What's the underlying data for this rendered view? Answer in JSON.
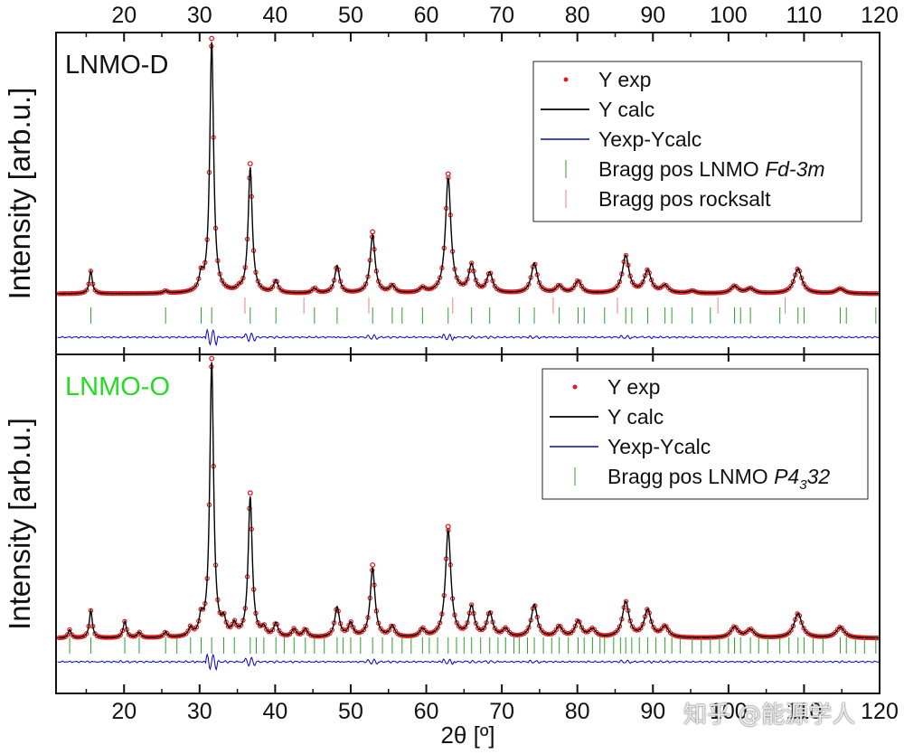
{
  "figure": {
    "watermark": "知乎 @能源学人"
  },
  "chart_data": [
    {
      "type": "scatter",
      "panel_label": "LNMO-D",
      "panel_label_color": "#111111",
      "xlabel": "2θ [º]",
      "ylabel": "Intensity [arb.u.]",
      "xlim": [
        11,
        120
      ],
      "x_ticks": [
        20,
        30,
        40,
        50,
        60,
        70,
        80,
        90,
        100,
        110,
        120
      ],
      "y_ticks_shown": false,
      "legend_position": "top-right",
      "baseline": 0.05,
      "peaks": [
        {
          "x": 15.6,
          "h": 0.09
        },
        {
          "x": 25.5,
          "h": 0.01
        },
        {
          "x": 30.2,
          "h": 0.06
        },
        {
          "x": 31.6,
          "h": 1.0
        },
        {
          "x": 35.2,
          "h": 0.01
        },
        {
          "x": 36.7,
          "h": 0.5
        },
        {
          "x": 40.1,
          "h": 0.05
        },
        {
          "x": 45.2,
          "h": 0.02
        },
        {
          "x": 48.2,
          "h": 0.11
        },
        {
          "x": 52.9,
          "h": 0.23
        },
        {
          "x": 55.5,
          "h": 0.03
        },
        {
          "x": 59.5,
          "h": 0.02
        },
        {
          "x": 62.9,
          "h": 0.46
        },
        {
          "x": 66.0,
          "h": 0.11
        },
        {
          "x": 68.4,
          "h": 0.08
        },
        {
          "x": 74.3,
          "h": 0.12
        },
        {
          "x": 77.6,
          "h": 0.03
        },
        {
          "x": 80.1,
          "h": 0.05
        },
        {
          "x": 86.4,
          "h": 0.15
        },
        {
          "x": 89.3,
          "h": 0.09
        },
        {
          "x": 91.6,
          "h": 0.03
        },
        {
          "x": 95.2,
          "h": 0.01
        },
        {
          "x": 100.8,
          "h": 0.03
        },
        {
          "x": 102.9,
          "h": 0.02
        },
        {
          "x": 109.2,
          "h": 0.1
        },
        {
          "x": 114.8,
          "h": 0.02
        }
      ],
      "bragg_positions": [
        {
          "name": "Bragg pos LNMO",
          "color": "#2ca02c",
          "x": [
            15.6,
            25.5,
            30.2,
            31.6,
            36.7,
            40.1,
            45.2,
            48.2,
            52.9,
            55.5,
            56.8,
            59.5,
            62.9,
            66.0,
            68.4,
            72.3,
            74.3,
            77.6,
            80.1,
            80.9,
            83.6,
            86.4,
            87.2,
            89.3,
            91.6,
            92.5,
            95.2,
            97.6,
            100.8,
            101.6,
            102.9,
            106.8,
            109.2,
            110.0,
            114.8,
            115.6,
            119.5
          ]
        },
        {
          "name": "Bragg pos rocksalt",
          "color": "#f08080",
          "x": [
            36.0,
            43.8,
            52.4,
            63.5,
            76.8,
            85.3,
            98.6,
            107.5
          ]
        }
      ],
      "series": [
        {
          "name": "Y exp",
          "style": "points",
          "color": "#e41a1c"
        },
        {
          "name": "Y calc",
          "style": "line",
          "color": "#000000"
        },
        {
          "name": "Yexp-Ycalc",
          "style": "line",
          "color": "#0000cc"
        }
      ],
      "legend": [
        {
          "kind": "dot",
          "color": "#e41a1c",
          "text": "Y exp",
          "italic": ""
        },
        {
          "kind": "line",
          "color": "#000000",
          "text": "Y calc",
          "italic": ""
        },
        {
          "kind": "line",
          "color": "#1f2fbf",
          "text": "Yexp-Ycalc",
          "italic": ""
        },
        {
          "kind": "tick",
          "color": "#2ca02c",
          "text": "Bragg pos LNMO ",
          "italic": "Fd-3m"
        },
        {
          "kind": "tick",
          "color": "#f08080",
          "text": "Bragg pos rocksalt",
          "italic": ""
        }
      ]
    },
    {
      "type": "scatter",
      "panel_label": "LNMO-O",
      "panel_label_color": "#22dd22",
      "xlabel": "2θ [º]",
      "ylabel": "Intensity [arb.u.]",
      "xlim": [
        11,
        120
      ],
      "x_ticks": [
        20,
        30,
        40,
        50,
        60,
        70,
        80,
        90,
        100,
        110,
        120
      ],
      "y_ticks_shown": false,
      "legend_position": "top-right",
      "baseline": 0.06,
      "peaks": [
        {
          "x": 12.8,
          "h": 0.03
        },
        {
          "x": 15.6,
          "h": 0.1
        },
        {
          "x": 20.1,
          "h": 0.06
        },
        {
          "x": 22.0,
          "h": 0.02
        },
        {
          "x": 25.5,
          "h": 0.02
        },
        {
          "x": 28.8,
          "h": 0.03
        },
        {
          "x": 30.2,
          "h": 0.06
        },
        {
          "x": 31.6,
          "h": 1.0
        },
        {
          "x": 33.2,
          "h": 0.05
        },
        {
          "x": 34.6,
          "h": 0.04
        },
        {
          "x": 36.7,
          "h": 0.51
        },
        {
          "x": 38.5,
          "h": 0.03
        },
        {
          "x": 40.1,
          "h": 0.05
        },
        {
          "x": 42.5,
          "h": 0.03
        },
        {
          "x": 44.0,
          "h": 0.03
        },
        {
          "x": 48.2,
          "h": 0.11
        },
        {
          "x": 50.0,
          "h": 0.05
        },
        {
          "x": 52.9,
          "h": 0.25
        },
        {
          "x": 55.5,
          "h": 0.04
        },
        {
          "x": 59.5,
          "h": 0.03
        },
        {
          "x": 62.9,
          "h": 0.39
        },
        {
          "x": 66.0,
          "h": 0.11
        },
        {
          "x": 68.4,
          "h": 0.09
        },
        {
          "x": 70.5,
          "h": 0.03
        },
        {
          "x": 74.3,
          "h": 0.12
        },
        {
          "x": 77.6,
          "h": 0.04
        },
        {
          "x": 80.1,
          "h": 0.06
        },
        {
          "x": 82.0,
          "h": 0.03
        },
        {
          "x": 86.4,
          "h": 0.13
        },
        {
          "x": 89.3,
          "h": 0.1
        },
        {
          "x": 91.6,
          "h": 0.04
        },
        {
          "x": 100.8,
          "h": 0.04
        },
        {
          "x": 102.9,
          "h": 0.03
        },
        {
          "x": 109.2,
          "h": 0.09
        },
        {
          "x": 114.8,
          "h": 0.04
        }
      ],
      "bragg_positions": [
        {
          "name": "Bragg pos LNMO",
          "color": "#2ca02c",
          "x": [
            12.8,
            15.6,
            20.1,
            22.0,
            25.5,
            27.0,
            28.8,
            30.2,
            31.6,
            33.2,
            34.6,
            36.7,
            37.5,
            38.5,
            40.1,
            41.2,
            42.5,
            44.0,
            45.2,
            46.5,
            48.2,
            49.0,
            50.0,
            51.3,
            52.9,
            54.2,
            55.5,
            56.8,
            58.0,
            59.5,
            60.4,
            61.5,
            62.9,
            64.0,
            65.0,
            66.0,
            67.2,
            68.4,
            69.5,
            70.5,
            71.6,
            72.3,
            73.4,
            74.3,
            75.5,
            76.6,
            77.6,
            78.8,
            80.1,
            80.9,
            82.0,
            83.0,
            83.6,
            84.8,
            85.7,
            86.4,
            87.2,
            88.2,
            89.3,
            90.4,
            91.6,
            92.5,
            93.6,
            95.2,
            96.4,
            97.6,
            98.8,
            100.0,
            100.8,
            101.6,
            102.9,
            104.0,
            105.2,
            106.8,
            108.0,
            109.2,
            110.0,
            111.2,
            112.5,
            114.8,
            115.6,
            116.8,
            118.0,
            119.5
          ]
        }
      ],
      "series": [
        {
          "name": "Y exp",
          "style": "points",
          "color": "#e41a1c"
        },
        {
          "name": "Y calc",
          "style": "line",
          "color": "#000000"
        },
        {
          "name": "Yexp-Ycalc",
          "style": "line",
          "color": "#0000cc"
        }
      ],
      "legend": [
        {
          "kind": "dot",
          "color": "#e41a1c",
          "text": "Y exp",
          "italic": ""
        },
        {
          "kind": "line",
          "color": "#000000",
          "text": "Y calc",
          "italic": ""
        },
        {
          "kind": "line",
          "color": "#1f2fbf",
          "text": "Yexp-Ycalc",
          "italic": ""
        },
        {
          "kind": "tick",
          "color": "#2ca02c",
          "text": "Bragg pos LNMO ",
          "italic": "P4",
          "sub": "3",
          "italic_after": "32"
        }
      ]
    }
  ]
}
